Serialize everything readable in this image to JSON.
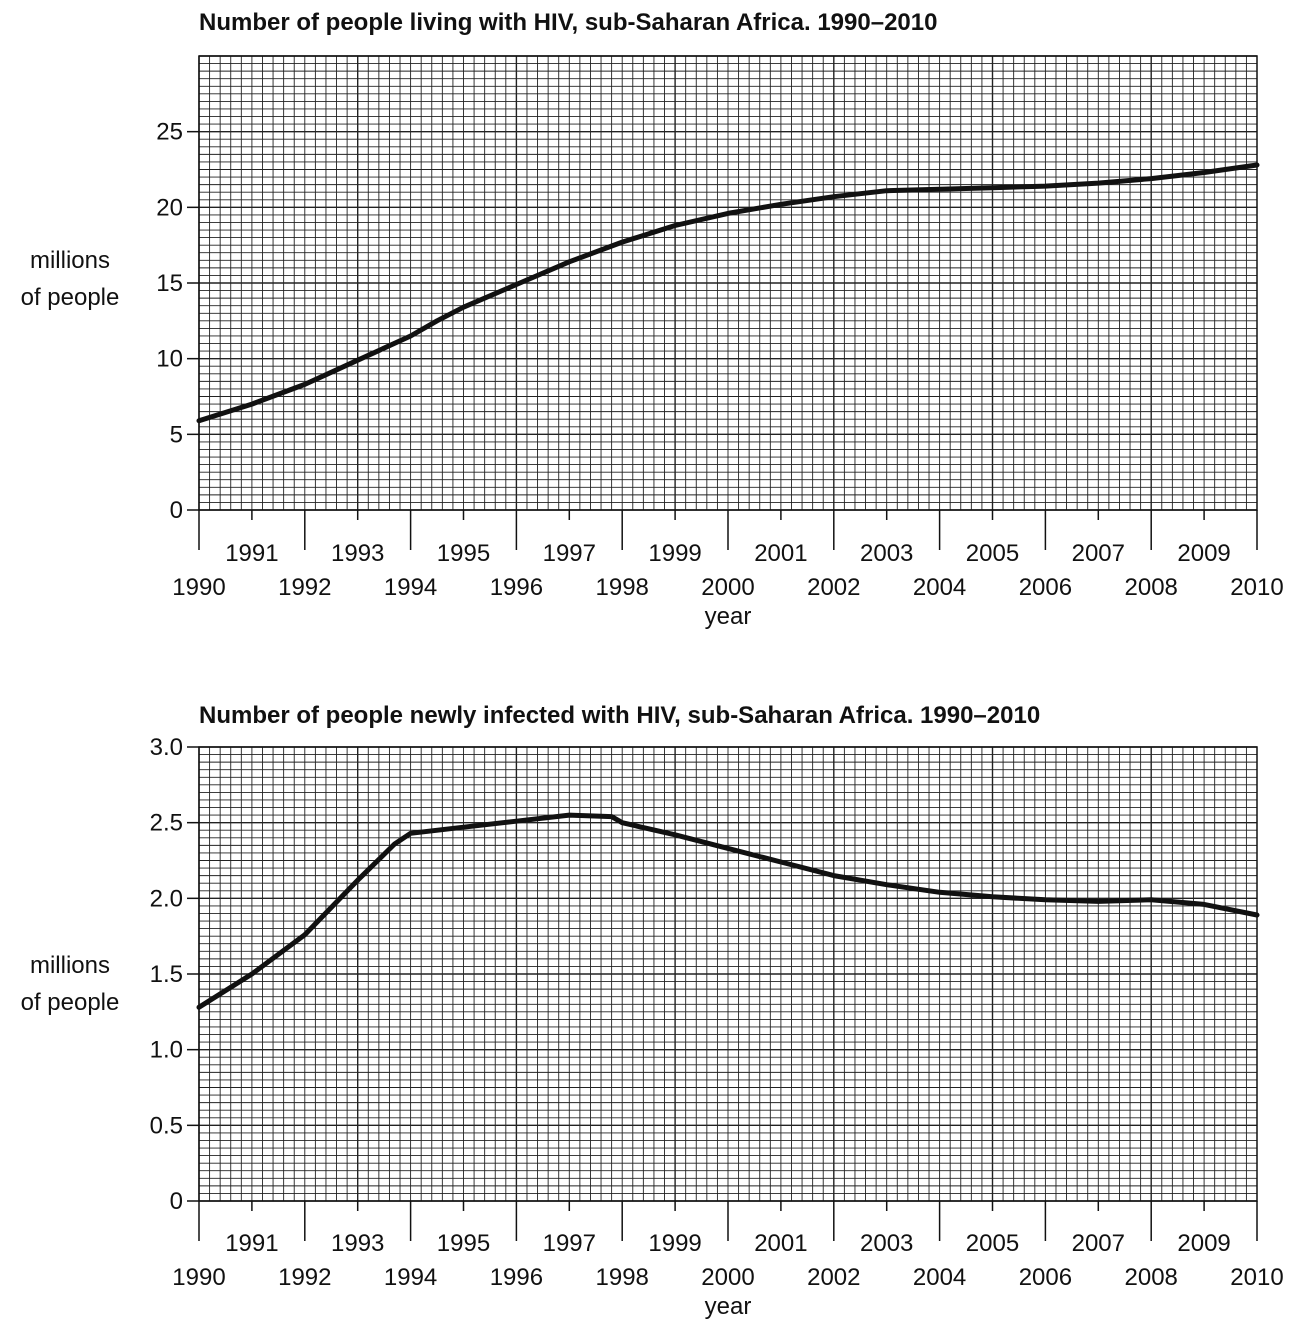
{
  "chart_data": [
    {
      "type": "line",
      "title": "Number of people living with HIV, sub-Saharan Africa. 1990–2010",
      "xlabel": "year",
      "ylabel": [
        "millions",
        "of people"
      ],
      "xlim": [
        1990,
        2010
      ],
      "ylim": [
        0,
        30
      ],
      "yticks": [
        0,
        5,
        10,
        15,
        20,
        25
      ],
      "ytick_labels": [
        "0",
        "5",
        "10",
        "15",
        "20",
        "25"
      ],
      "xticks_upper": [
        "1991",
        "1993",
        "1995",
        "1997",
        "1999",
        "2001",
        "2003",
        "2005",
        "2007",
        "2009"
      ],
      "xticks_lower": [
        "1990",
        "1992",
        "1994",
        "1996",
        "1998",
        "2000",
        "2002",
        "2004",
        "2006",
        "2008",
        "2010"
      ],
      "grid": true,
      "series": [
        {
          "x": [
            1990,
            1991,
            1992,
            1993,
            1994,
            1994.5,
            1995,
            1996,
            1997,
            1998,
            1999,
            2000,
            2001,
            2002,
            2003,
            2004,
            2005,
            2006,
            2007,
            2008,
            2009,
            2010
          ],
          "values": [
            5.9,
            7.0,
            8.3,
            9.9,
            11.5,
            12.5,
            13.4,
            14.9,
            16.4,
            17.7,
            18.8,
            19.6,
            20.2,
            20.7,
            21.1,
            21.2,
            21.3,
            21.4,
            21.6,
            21.9,
            22.3,
            22.8
          ]
        }
      ]
    },
    {
      "type": "line",
      "title": "Number of people newly infected with HIV, sub-Saharan Africa. 1990–2010",
      "xlabel": "year",
      "ylabel": [
        "millions",
        "of people"
      ],
      "xlim": [
        1990,
        2010
      ],
      "ylim": [
        0,
        3.0
      ],
      "yticks": [
        0,
        0.5,
        1.0,
        1.5,
        2.0,
        2.5,
        3.0
      ],
      "ytick_labels": [
        "0",
        "0.5",
        "1.0",
        "1.5",
        "2.0",
        "2.5",
        "3.0"
      ],
      "xticks_upper": [
        "1991",
        "1993",
        "1995",
        "1997",
        "1999",
        "2001",
        "2003",
        "2005",
        "2007",
        "2009"
      ],
      "xticks_lower": [
        "1990",
        "1992",
        "1994",
        "1996",
        "1998",
        "2000",
        "2002",
        "2004",
        "2006",
        "2008",
        "2010"
      ],
      "grid": true,
      "series": [
        {
          "x": [
            1990,
            1991,
            1992,
            1993,
            1993.7,
            1994,
            1995,
            1996,
            1997,
            1997.8,
            1998,
            1999,
            2000,
            2001,
            2002,
            2003,
            2004,
            2005,
            2006,
            2007,
            2008,
            2009,
            2010
          ],
          "values": [
            1.28,
            1.5,
            1.76,
            2.12,
            2.36,
            2.43,
            2.47,
            2.51,
            2.55,
            2.54,
            2.5,
            2.42,
            2.33,
            2.24,
            2.15,
            2.09,
            2.04,
            2.01,
            1.99,
            1.98,
            1.99,
            1.96,
            1.89
          ]
        }
      ]
    }
  ]
}
